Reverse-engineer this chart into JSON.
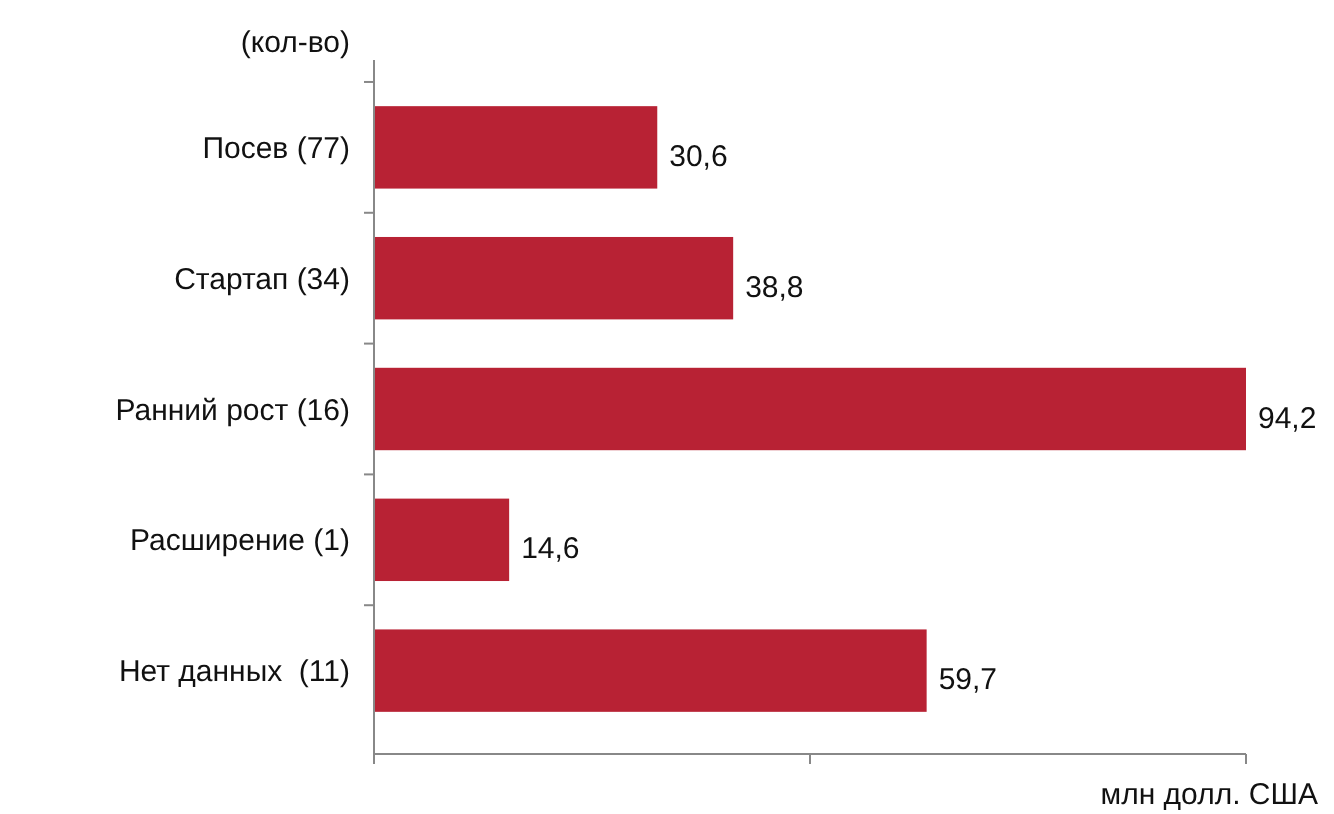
{
  "chart_data": {
    "type": "bar",
    "orientation": "horizontal",
    "ylabel": "(кол-во)",
    "xlabel": "млн долл. США",
    "categories": [
      "Посев (77)",
      "Стартап (34)",
      "Ранний рост (16)",
      "Расширение (1)",
      "Нет данных  (11)"
    ],
    "values": [
      30.6,
      38.8,
      94.2,
      14.6,
      59.7
    ],
    "color": "#b82234",
    "value_labels": [
      "30,6",
      "38,8",
      "94,2",
      "14,6",
      "59,7"
    ],
    "xlim": [
      0,
      94.2
    ],
    "xticks": [
      {
        "value": 0,
        "label": null
      },
      {
        "value": 47.1,
        "label": null
      },
      {
        "value": 94.2,
        "label": null
      }
    ],
    "grid": false
  }
}
